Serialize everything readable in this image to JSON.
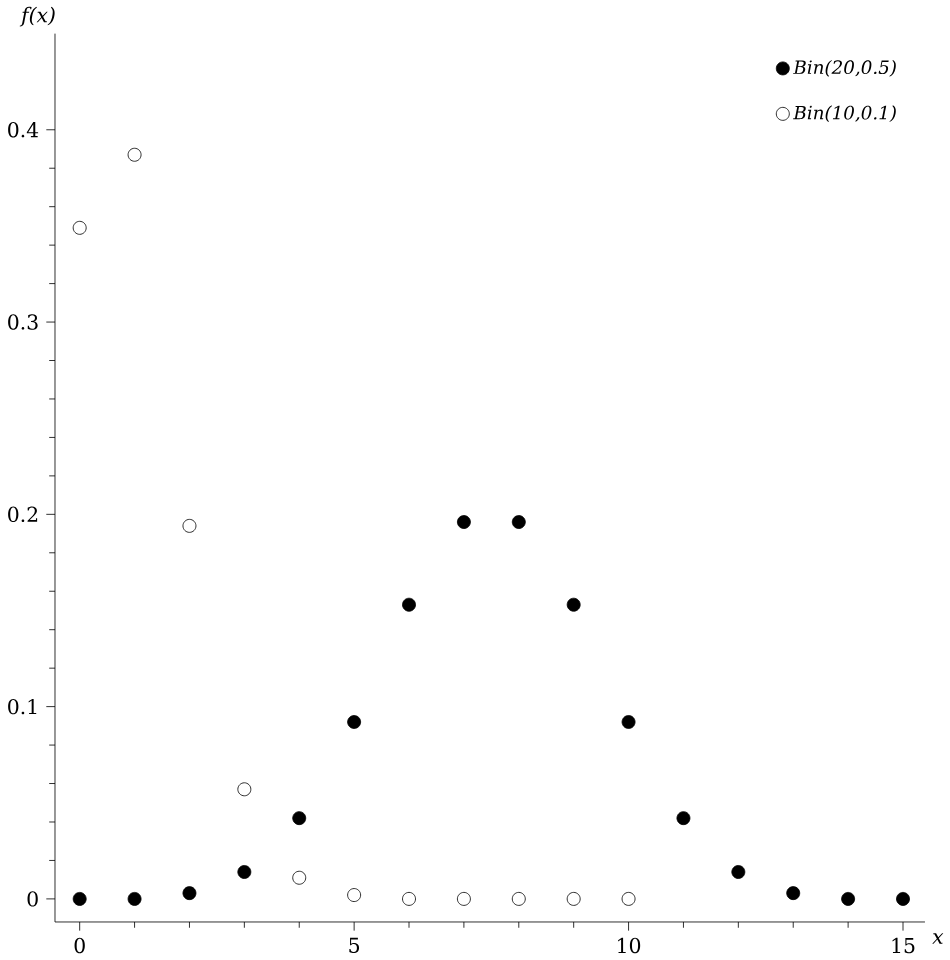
{
  "chart_data": {
    "type": "scatter",
    "xlabel": "x",
    "ylabel": "f(x)",
    "xlim": [
      -0.45,
      15.4
    ],
    "ylim": [
      -0.012,
      0.45
    ],
    "xticks": [
      0,
      5,
      10,
      15
    ],
    "yticks": [
      0,
      0.1,
      0.2,
      0.3,
      0.4
    ],
    "marker": "circle",
    "legend": "top right",
    "grid": false,
    "series": [
      {
        "name": "Bin(20,0.5)",
        "color": "#000000",
        "x": [
          0,
          1,
          2,
          3,
          4,
          5,
          6,
          7,
          8,
          9,
          10,
          11,
          12,
          13,
          14,
          15
        ],
        "values": [
          0,
          0,
          0.003,
          0.014,
          0.042,
          0.092,
          0.153,
          0.196,
          0.196,
          0.153,
          0.092,
          0.042,
          0.014,
          0.003,
          0,
          0
        ]
      },
      {
        "name": "Bin(10,0.1)",
        "color": "#ffffff",
        "x": [
          0,
          1,
          2,
          3,
          4,
          5,
          6,
          7,
          8,
          9,
          10
        ],
        "values": [
          0.349,
          0.387,
          0.194,
          0.057,
          0.011,
          0.002,
          0,
          0,
          0,
          0,
          0
        ]
      }
    ]
  }
}
